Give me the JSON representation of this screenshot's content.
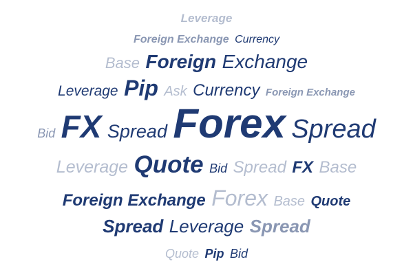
{
  "word_cloud": {
    "lines": [
      [
        "Leverage"
      ],
      [
        "Foreign Exchange",
        "Currency"
      ],
      [
        "Base",
        "Foreign",
        "Exchange"
      ],
      [
        "Leverage",
        "Pip",
        "Ask",
        "Currency",
        "Foreign Exchange"
      ],
      [
        "Bid",
        "FX",
        "Spread",
        "Forex",
        "Spread"
      ],
      [
        "Leverage",
        "Quote",
        "Bid",
        "Spread",
        "FX",
        "Base"
      ],
      [
        "Foreign Exchange",
        "Forex",
        "Base",
        "Quote"
      ],
      [
        "Spread",
        "Leverage",
        "Spread"
      ],
      [
        "Quote",
        "Pip",
        "Bid"
      ]
    ],
    "colors": {
      "dark": "#1f3a73",
      "mid": "#8a97b3",
      "light": "#b4bdcf"
    }
  }
}
